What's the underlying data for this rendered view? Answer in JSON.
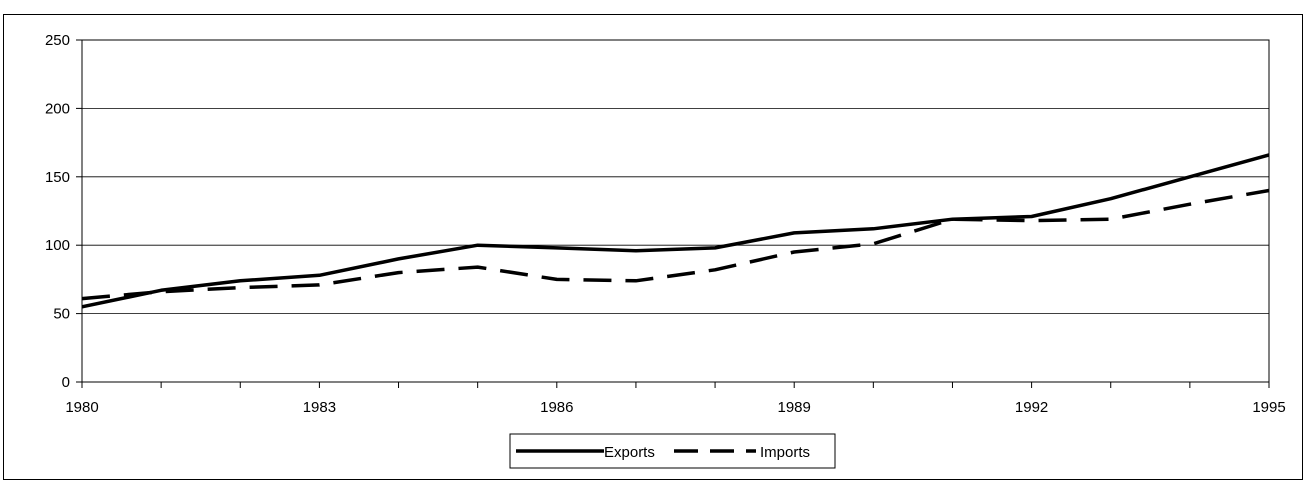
{
  "chart_data": {
    "type": "line",
    "x": [
      1980,
      1981,
      1982,
      1983,
      1984,
      1985,
      1986,
      1987,
      1988,
      1989,
      1990,
      1991,
      1992,
      1993,
      1994,
      1995
    ],
    "x_tick_labels": [
      "1980",
      "1983",
      "1986",
      "1989",
      "1992",
      "1995"
    ],
    "y_tick_labels": [
      "0",
      "50",
      "100",
      "150",
      "200",
      "250"
    ],
    "ylim": [
      0,
      250
    ],
    "xlim": [
      1980,
      1995
    ],
    "grid": "horizontal",
    "legend_position": "bottom-center",
    "series": [
      {
        "name": "Exports",
        "style": "solid",
        "color": "#000000",
        "values": [
          55,
          67,
          74,
          78,
          90,
          100,
          98,
          96,
          98,
          109,
          112,
          119,
          121,
          134,
          150,
          166
        ]
      },
      {
        "name": "Imports",
        "style": "dashed",
        "color": "#000000",
        "values": [
          61,
          66,
          69,
          71,
          80,
          84,
          75,
          74,
          82,
          95,
          101,
          119,
          118,
          119,
          130,
          140
        ]
      }
    ],
    "title": "",
    "xlabel": "",
    "ylabel": ""
  }
}
